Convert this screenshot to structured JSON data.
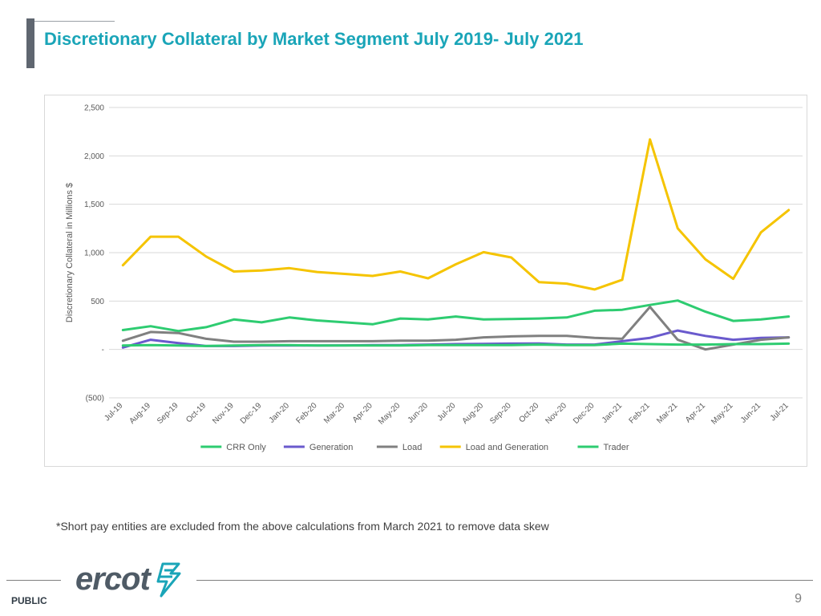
{
  "slide": {
    "title": "Discretionary Collateral by Market Segment July 2019- July 2021",
    "footnote": "*Short pay entities are excluded from the above calculations from March 2021 to remove data skew",
    "logo_text": "ercot",
    "classification": "PUBLIC",
    "page_number": "9",
    "colors": {
      "title": "#1aa5b8",
      "accent_bar": "#5f6670",
      "logo": "#4f5b66",
      "logo_mark": "#1aa5b8"
    }
  },
  "chart_data": {
    "type": "line",
    "ylabel": "Discretionary Collateral in Millions $",
    "ylim": [
      -500,
      2500
    ],
    "yticks": [
      2500,
      2000,
      1500,
      1000,
      500,
      0,
      -500
    ],
    "ytick_labels": [
      "2,500",
      "2,000",
      "1,500",
      "1,000",
      "500",
      "-",
      "(500)"
    ],
    "grid": true,
    "legend_position": "bottom",
    "categories": [
      "Jul-19",
      "Aug-19",
      "Sep-19",
      "Oct-19",
      "Nov-19",
      "Dec-19",
      "Jan-20",
      "Feb-20",
      "Mar-20",
      "Apr-20",
      "May-20",
      "Jun-20",
      "Jul-20",
      "Aug-20",
      "Sep-20",
      "Oct-20",
      "Nov-20",
      "Dec-20",
      "Jan-21",
      "Feb-21",
      "Mar-21",
      "Apr-21",
      "May-21",
      "Jun-21",
      "Jul-21"
    ],
    "series": [
      {
        "name": "CRR Only",
        "color": "#2ecc71",
        "values": [
          200,
          240,
          190,
          230,
          310,
          280,
          330,
          300,
          280,
          260,
          320,
          310,
          340,
          310,
          315,
          320,
          330,
          400,
          410,
          460,
          505,
          390,
          295,
          310,
          340
        ]
      },
      {
        "name": "Generation",
        "color": "#6a5acd",
        "values": [
          20,
          100,
          65,
          35,
          35,
          40,
          40,
          40,
          42,
          45,
          45,
          50,
          55,
          58,
          60,
          62,
          50,
          50,
          85,
          120,
          195,
          140,
          100,
          120,
          125
        ]
      },
      {
        "name": "Load",
        "color": "#808080",
        "values": [
          90,
          180,
          170,
          110,
          80,
          80,
          85,
          85,
          85,
          85,
          90,
          90,
          100,
          125,
          135,
          140,
          140,
          120,
          110,
          440,
          100,
          0,
          50,
          100,
          125
        ]
      },
      {
        "name": "Load and Generation",
        "color": "#f5c400",
        "values": [
          870,
          1165,
          1165,
          960,
          805,
          815,
          840,
          800,
          780,
          760,
          805,
          735,
          880,
          1005,
          950,
          695,
          680,
          620,
          720,
          2170,
          1250,
          930,
          730,
          1210,
          1440
        ]
      },
      {
        "name": "Trader",
        "color": "#2ecc71",
        "values": [
          40,
          45,
          40,
          35,
          40,
          45,
          45,
          40,
          40,
          40,
          40,
          45,
          45,
          45,
          45,
          50,
          45,
          45,
          60,
          55,
          50,
          50,
          55,
          55,
          60
        ]
      }
    ]
  }
}
